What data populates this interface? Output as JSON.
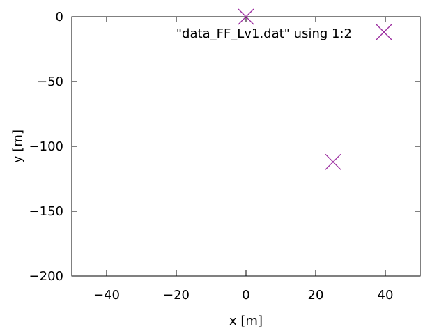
{
  "chart_data": {
    "type": "scatter",
    "xlabel": "x [m]",
    "ylabel": "y [m]",
    "xlim": [
      -50,
      50
    ],
    "ylim": [
      -200,
      0
    ],
    "x_ticks": [
      -40,
      -20,
      0,
      20,
      40
    ],
    "x_tick_labels": [
      "−40",
      "−20",
      "0",
      "20",
      "40"
    ],
    "y_ticks": [
      0,
      -50,
      -100,
      -150,
      -200
    ],
    "y_tick_labels": [
      "0",
      "−50",
      "−100",
      "−150",
      "−200"
    ],
    "grid": false,
    "legend_position": "top-right",
    "series": [
      {
        "name": "\"data_FF_Lv1.dat\" using 1:2",
        "color": "#9c2ea0",
        "marker": "x",
        "points": [
          {
            "x": 0,
            "y": 0
          },
          {
            "x": 25,
            "y": -112
          }
        ]
      }
    ]
  }
}
